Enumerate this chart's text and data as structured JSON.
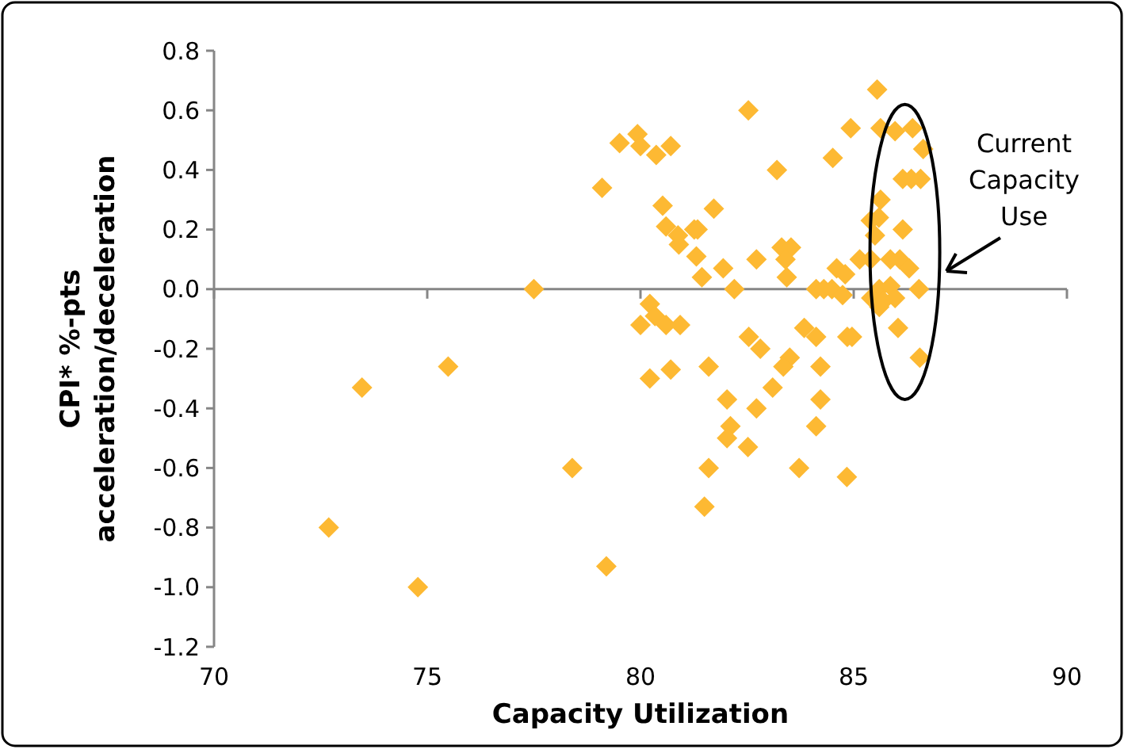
{
  "chart_data": {
    "type": "scatter",
    "xlabel": "Capacity Utilization",
    "ylabel": "CPI* %-pts\nacceleration/deceleration",
    "marker": "diamond",
    "xlim": [
      70,
      90
    ],
    "xticks": [
      70,
      75,
      80,
      85,
      90
    ],
    "ylim": [
      -1.2,
      0.8
    ],
    "yticks": [
      {
        "value": -1.2,
        "label": "-1.2"
      },
      {
        "value": -1,
        "label": "-1.0"
      },
      {
        "value": -0.8,
        "label": "-0.8"
      },
      {
        "value": -0.6,
        "label": "-0.6"
      },
      {
        "value": -0.4,
        "label": "-0.4"
      },
      {
        "value": -0.2,
        "label": "-0.2"
      },
      {
        "value": 0,
        "label": "0.0"
      },
      {
        "value": 0.2,
        "label": "0.2"
      },
      {
        "value": 0.4,
        "label": "0.4"
      },
      {
        "value": 0.6,
        "label": "0.6"
      },
      {
        "value": 0.8,
        "label": "0.8"
      }
    ],
    "annotations": [
      "Current Capacity Use"
    ],
    "series": [
      {
        "color": "#fdb933",
        "x": [
          79.51,
          79.93,
          80.0,
          80.37,
          80.71,
          79.1,
          80.52,
          80.6,
          80.9,
          77.5,
          80.22,
          80.34,
          80.0,
          80.6,
          80.93,
          75.49,
          73.47,
          80.22,
          80.71,
          78.4,
          72.69,
          79.2,
          74.78,
          85.55,
          82.53,
          84.93,
          85.63,
          85.97,
          86.38,
          86.63,
          84.51,
          83.2,
          86.15,
          86.35,
          86.57,
          85.63,
          81.72,
          85.59,
          85.4,
          86.15,
          81.26,
          81.34,
          80.88,
          85.5,
          83.31,
          83.53,
          81.31,
          81.94,
          82.72,
          83.4,
          85.14,
          85.4,
          85.86,
          86.08,
          86.3,
          81.44,
          82.2,
          83.43,
          84.6,
          84.8,
          84.12,
          84.3,
          84.49,
          84.74,
          85.6,
          85.86,
          86.53,
          85.41,
          85.7,
          85.97,
          86.04,
          82.54,
          83.84,
          84.12,
          85.6,
          86.55,
          82.81,
          84.85,
          84.96,
          81.6,
          83.5,
          83.35,
          84.22,
          83.1,
          82.03,
          82.72,
          84.22,
          82.11,
          82.03,
          82.52,
          84.12,
          81.6,
          83.72,
          84.84,
          81.5
        ],
        "values": [
          0.49,
          0.52,
          0.48,
          0.45,
          0.48,
          0.34,
          0.28,
          0.21,
          0.15,
          0.0,
          -0.05,
          -0.09,
          -0.12,
          -0.12,
          -0.12,
          -0.26,
          -0.33,
          -0.3,
          -0.27,
          -0.6,
          -0.8,
          -0.93,
          -1.0,
          0.67,
          0.6,
          0.54,
          0.54,
          0.53,
          0.54,
          0.47,
          0.44,
          0.4,
          0.37,
          0.37,
          0.37,
          0.3,
          0.27,
          0.24,
          0.23,
          0.2,
          0.2,
          0.2,
          0.18,
          0.18,
          0.14,
          0.14,
          0.11,
          0.07,
          0.1,
          0.1,
          0.1,
          0.1,
          0.1,
          0.1,
          0.07,
          0.04,
          0.0,
          0.04,
          0.07,
          0.05,
          0.0,
          0.0,
          0.0,
          -0.02,
          0.0,
          0.01,
          0.0,
          -0.03,
          -0.04,
          -0.03,
          -0.13,
          -0.16,
          -0.13,
          -0.16,
          -0.06,
          -0.23,
          -0.2,
          -0.16,
          -0.16,
          -0.26,
          -0.23,
          -0.26,
          -0.26,
          -0.33,
          -0.37,
          -0.4,
          -0.37,
          -0.46,
          -0.5,
          -0.53,
          -0.46,
          -0.6,
          -0.6,
          -0.63,
          -0.73
        ]
      }
    ]
  }
}
